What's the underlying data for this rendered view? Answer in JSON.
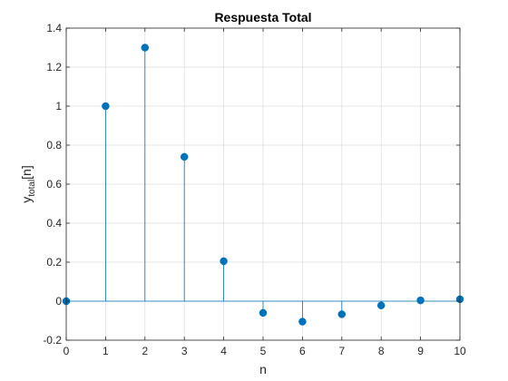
{
  "chart_data": {
    "type": "stem",
    "title": "Respuesta Total",
    "xlabel": "n",
    "ylabel_main": "y",
    "ylabel_sub": "total",
    "ylabel_suffix": "[n]",
    "xlim": [
      0,
      10
    ],
    "ylim": [
      -0.2,
      1.4
    ],
    "xticks": [
      0,
      1,
      2,
      3,
      4,
      5,
      6,
      7,
      8,
      9,
      10
    ],
    "xtick_labels": [
      "0",
      "1",
      "2",
      "3",
      "4",
      "5",
      "6",
      "7",
      "8",
      "9",
      "10"
    ],
    "yticks": [
      -0.2,
      0,
      0.2,
      0.4,
      0.6,
      0.8,
      1,
      1.2,
      1.4
    ],
    "ytick_labels": [
      "-0.2",
      "0",
      "0.2",
      "0.4",
      "0.6",
      "0.8",
      "1",
      "1.2",
      "1.4"
    ],
    "grid": true,
    "x": [
      0,
      1,
      2,
      3,
      4,
      5,
      6,
      7,
      8,
      9,
      10
    ],
    "values": [
      0,
      1.0,
      1.3,
      0.74,
      0.205,
      -0.06,
      -0.105,
      -0.067,
      -0.022,
      0.004,
      0.01
    ],
    "color": "#0072BD",
    "baseline": 0
  }
}
